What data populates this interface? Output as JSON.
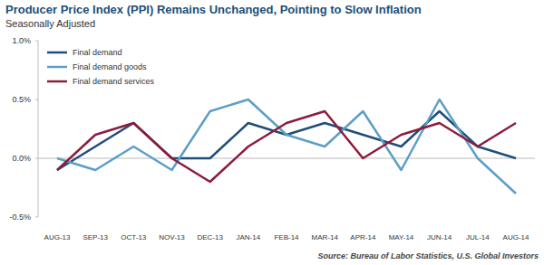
{
  "chart_data": {
    "type": "line",
    "title": "Producer Price Index (PPI) Remains Unchanged, Pointing to Slow Inflation",
    "subtitle": "Seasonally Adjusted",
    "source": "Source: Bureau of Labor Statistics, U.S. Global Investors",
    "categories": [
      "AUG-13",
      "SEP-13",
      "OCT-13",
      "NOV-13",
      "DEC-13",
      "JAN-14",
      "FEB-14",
      "MAR-14",
      "APR-14",
      "MAY-14",
      "JUN-14",
      "JUL-14",
      "AUG-14"
    ],
    "series": [
      {
        "name": "Final demand",
        "color": "#1f4e79",
        "values": [
          -0.1,
          0.1,
          0.3,
          0.0,
          0.0,
          0.3,
          0.2,
          0.3,
          0.2,
          0.1,
          0.4,
          0.1,
          0.0
        ]
      },
      {
        "name": "Final demand goods",
        "color": "#5c9ec9",
        "values": [
          0.0,
          -0.1,
          0.1,
          -0.1,
          0.4,
          0.5,
          0.2,
          0.1,
          0.4,
          -0.1,
          0.5,
          0.0,
          -0.3
        ]
      },
      {
        "name": "Final demand services",
        "color": "#8c1c3c",
        "values": [
          -0.1,
          0.2,
          0.3,
          0.0,
          -0.2,
          0.1,
          0.3,
          0.4,
          0.0,
          0.2,
          0.3,
          0.1,
          0.3
        ]
      }
    ],
    "ylim": [
      -0.5,
      1.0
    ],
    "yticks": [
      {
        "value": -0.5,
        "label": "-0.5%"
      },
      {
        "value": 0.0,
        "label": "0.0%"
      },
      {
        "value": 0.5,
        "label": "0.5%"
      },
      {
        "value": 1.0,
        "label": "1.0%"
      }
    ],
    "grid": false,
    "legend": "top-left"
  }
}
